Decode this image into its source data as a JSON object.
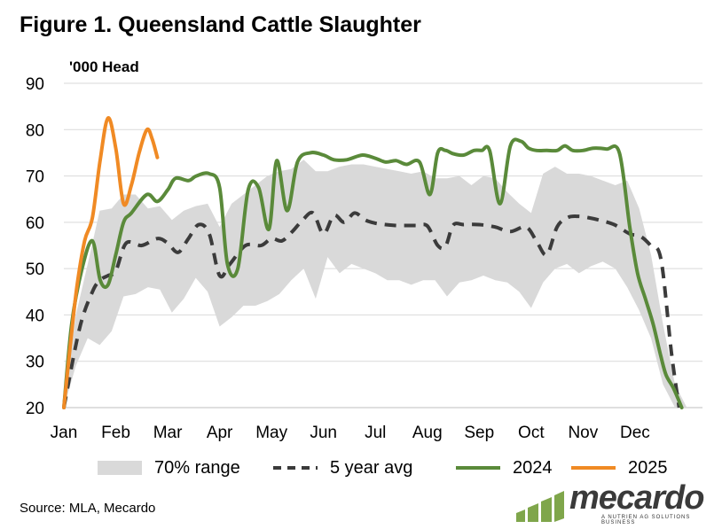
{
  "title": "Figure 1. Queensland Cattle Slaughter",
  "source": "Source: MLA, Mecardo",
  "logo": {
    "wordmark": "mecardo",
    "tagline": "A NUTRIEN AG SOLUTIONS BUSINESS"
  },
  "colors": {
    "band": "#d9d9d9",
    "avg": "#3b3b3b",
    "y2024": "#5a8a3a",
    "y2025": "#f08a24",
    "logo_green": "#7fa64b"
  },
  "chart_data": {
    "type": "line",
    "ylabel": "'000 Head",
    "ylim": [
      20,
      90
    ],
    "yticks": [
      20,
      30,
      40,
      50,
      60,
      70,
      80,
      90
    ],
    "xlim": [
      0,
      12.3
    ],
    "xticks": [
      "Jan",
      "Feb",
      "Mar",
      "Apr",
      "May",
      "Jun",
      "Jul",
      "Aug",
      "Sep",
      "Oct",
      "Nov",
      "Dec"
    ],
    "grid": "horizontal",
    "legend_position": "bottom",
    "series": [
      {
        "name": "70% range",
        "kind": "band",
        "x": [
          0,
          0.23,
          0.46,
          0.69,
          0.92,
          1.15,
          1.38,
          1.62,
          1.85,
          2.08,
          2.31,
          2.54,
          2.77,
          3.0,
          3.23,
          3.46,
          3.69,
          3.92,
          4.15,
          4.38,
          4.62,
          4.85,
          5.08,
          5.31,
          5.54,
          5.77,
          6.0,
          6.23,
          6.46,
          6.69,
          6.92,
          7.15,
          7.38,
          7.62,
          7.85,
          8.08,
          8.31,
          8.54,
          8.77,
          9.0,
          9.23,
          9.46,
          9.69,
          9.92,
          10.15,
          10.38,
          10.62,
          10.85,
          11.08,
          11.31,
          11.54,
          11.77,
          12.0
        ],
        "low": [
          20,
          29,
          35,
          33.5,
          36.5,
          44,
          44.5,
          46,
          45.5,
          40.5,
          43.5,
          48,
          45,
          37.5,
          39.5,
          42,
          42,
          43,
          44.5,
          47.5,
          50,
          43.5,
          52.5,
          49,
          51,
          50,
          49,
          47.5,
          47.5,
          46.5,
          47.5,
          47.5,
          44,
          47,
          47.5,
          48.5,
          47.5,
          47,
          45,
          41.5,
          47,
          50,
          51,
          49,
          50.5,
          51.5,
          50,
          46,
          41,
          35,
          25,
          20,
          20
        ],
        "high": [
          20,
          40,
          51,
          62.5,
          63,
          66,
          66,
          63,
          63.5,
          60.5,
          62.5,
          63.5,
          64,
          59,
          64,
          66,
          68,
          70,
          71,
          71.5,
          73.5,
          71,
          71,
          72,
          72.5,
          72.5,
          72,
          71.5,
          71,
          70.5,
          71,
          69.5,
          69.5,
          70,
          68,
          70,
          69.5,
          66.5,
          64,
          62,
          70.5,
          72,
          70.5,
          70.5,
          70,
          69,
          68,
          69,
          63,
          53,
          38,
          25,
          20
        ]
      },
      {
        "name": "5 year avg",
        "kind": "dashed",
        "x": [
          0,
          0.3,
          0.55,
          0.7,
          0.85,
          1.0,
          1.2,
          1.5,
          1.8,
          2.0,
          2.2,
          2.4,
          2.6,
          2.8,
          3.0,
          3.2,
          3.5,
          3.8,
          4.0,
          4.2,
          4.4,
          4.6,
          4.8,
          5.0,
          5.2,
          5.4,
          5.6,
          5.8,
          6.0,
          6.2,
          6.4,
          6.6,
          6.8,
          7.0,
          7.2,
          7.35,
          7.5,
          7.7,
          8.0,
          8.3,
          8.6,
          8.9,
          9.1,
          9.3,
          9.5,
          9.7,
          9.9,
          10.1,
          10.3,
          10.6,
          10.9,
          11.1,
          11.3,
          11.5,
          11.7,
          11.85
        ],
        "y": [
          20,
          37,
          45,
          47.5,
          48.5,
          49.5,
          55.5,
          55,
          56.5,
          55.5,
          53.5,
          56.5,
          59.5,
          57.5,
          48.5,
          51,
          55,
          55,
          56.5,
          56,
          58,
          60.5,
          62,
          57.5,
          61.5,
          60,
          62,
          60.5,
          59.8,
          59.5,
          59.3,
          59.3,
          59.3,
          59.2,
          55,
          54.8,
          59.4,
          59.5,
          59.5,
          59,
          58,
          59,
          56,
          53,
          59,
          61,
          61.3,
          61,
          60.5,
          59.5,
          57.5,
          57,
          55,
          52,
          32,
          20
        ]
      },
      {
        "name": "2024",
        "kind": "solid",
        "x": [
          0,
          0.15,
          0.35,
          0.55,
          0.7,
          0.85,
          1.0,
          1.15,
          1.3,
          1.6,
          1.8,
          2.0,
          2.15,
          2.4,
          2.55,
          2.8,
          3.0,
          3.15,
          3.35,
          3.55,
          3.75,
          3.95,
          4.1,
          4.3,
          4.5,
          4.75,
          5.0,
          5.2,
          5.45,
          5.75,
          6.0,
          6.2,
          6.4,
          6.6,
          6.85,
          7.05,
          7.2,
          7.35,
          7.5,
          7.7,
          7.9,
          8.05,
          8.2,
          8.4,
          8.6,
          8.8,
          8.95,
          9.1,
          9.3,
          9.5,
          9.65,
          9.8,
          10.0,
          10.2,
          10.45,
          10.7,
          10.9,
          11.05,
          11.2,
          11.35,
          11.5,
          11.6,
          11.75,
          11.9
        ],
        "y": [
          20,
          38,
          50,
          56,
          47.5,
          46.5,
          53,
          60,
          62,
          66,
          64.5,
          67,
          69.5,
          69,
          70,
          70.5,
          67.5,
          51,
          50,
          67,
          67.5,
          58.5,
          73.3,
          62.5,
          73,
          75,
          74.5,
          73.5,
          73.5,
          74.5,
          73.8,
          73,
          73.3,
          72.5,
          73,
          66,
          75,
          75.5,
          74.8,
          74.5,
          75.5,
          75.5,
          75.5,
          64,
          76.5,
          77.5,
          76,
          75.5,
          75.5,
          75.5,
          76.5,
          75.5,
          75.5,
          76,
          75.8,
          75,
          59,
          49,
          43.5,
          38,
          31,
          27,
          24,
          20
        ]
      },
      {
        "name": "2025",
        "kind": "solid",
        "x": [
          0,
          0.12,
          0.25,
          0.4,
          0.55,
          0.7,
          0.85,
          1.0,
          1.15,
          1.3,
          1.45,
          1.6,
          1.7,
          1.8
        ],
        "y": [
          20,
          33,
          46,
          56,
          61,
          73.5,
          82.5,
          76,
          64,
          68,
          75,
          80,
          78,
          74
        ]
      }
    ]
  }
}
